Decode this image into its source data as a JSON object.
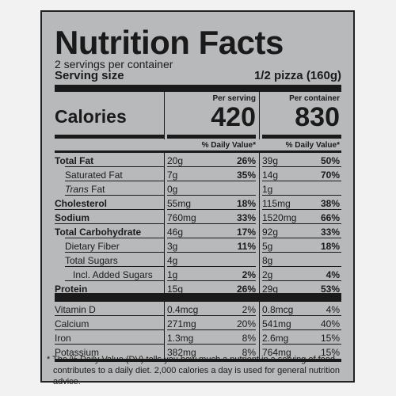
{
  "label": {
    "title": "Nutrition Facts",
    "servings_per_container": "2 servings per container",
    "serving_size_label": "Serving size",
    "serving_size_value": "1/2 pizza (160g)",
    "calories_label": "Calories",
    "columns": [
      {
        "header": "Per serving",
        "calories": "420",
        "dv_header": "% Daily Value*"
      },
      {
        "header": "Per container",
        "calories": "830",
        "dv_header": "% Daily Value*"
      }
    ],
    "nutrients": [
      {
        "name": "Total Fat",
        "bold": true,
        "indent": 0,
        "s_amt": "20g",
        "s_pct": "26%",
        "c_amt": "39g",
        "c_pct": "50%"
      },
      {
        "name": "Saturated Fat",
        "bold": false,
        "indent": 1,
        "s_amt": "7g",
        "s_pct": "35%",
        "c_amt": "14g",
        "c_pct": "70%"
      },
      {
        "name_italic": "Trans",
        "name": " Fat",
        "bold": false,
        "indent": 1,
        "s_amt": "0g",
        "s_pct": "",
        "c_amt": "1g",
        "c_pct": ""
      },
      {
        "name": "Cholesterol",
        "bold": true,
        "indent": 0,
        "s_amt": "55mg",
        "s_pct": "18%",
        "c_amt": "115mg",
        "c_pct": "38%"
      },
      {
        "name": "Sodium",
        "bold": true,
        "indent": 0,
        "s_amt": "760mg",
        "s_pct": "33%",
        "c_amt": "1520mg",
        "c_pct": "66%"
      },
      {
        "name": "Total Carbohydrate",
        "bold": true,
        "indent": 0,
        "s_amt": "46g",
        "s_pct": "17%",
        "c_amt": "92g",
        "c_pct": "33%"
      },
      {
        "name": "Dietary Fiber",
        "bold": false,
        "indent": 1,
        "s_amt": "3g",
        "s_pct": "11%",
        "c_amt": "5g",
        "c_pct": "18%"
      },
      {
        "name": "Total Sugars",
        "bold": false,
        "indent": 1,
        "s_amt": "4g",
        "s_pct": "",
        "c_amt": "8g",
        "c_pct": ""
      },
      {
        "name": "Incl. Added Sugars",
        "bold": false,
        "indent": 2,
        "s_amt": "1g",
        "s_pct": "2%",
        "c_amt": "2g",
        "c_pct": "4%"
      },
      {
        "name": "Protein",
        "bold": true,
        "indent": 0,
        "s_amt": "15g",
        "s_pct": "26%",
        "c_amt": "29g",
        "c_pct": "53%"
      }
    ],
    "vitamins": [
      {
        "name": "Vitamin D",
        "s_amt": "0.4mcg",
        "s_pct": "2%",
        "c_amt": "0.8mcg",
        "c_pct": "4%"
      },
      {
        "name": "Calcium",
        "s_amt": "271mg",
        "s_pct": "20%",
        "c_amt": "541mg",
        "c_pct": "40%"
      },
      {
        "name": "Iron",
        "s_amt": "1.3mg",
        "s_pct": "8%",
        "c_amt": "2.6mg",
        "c_pct": "15%"
      },
      {
        "name": "Potassium",
        "s_amt": "382mg",
        "s_pct": "8%",
        "c_amt": "764mg",
        "c_pct": "15%"
      }
    ],
    "footnote_line1": "* The % Daily Value (DV) tells you how much a nutrient in a serving of food",
    "footnote_line2": "contributes to a daily diet. 2,000 calories a day is used for general nutrition advice."
  }
}
